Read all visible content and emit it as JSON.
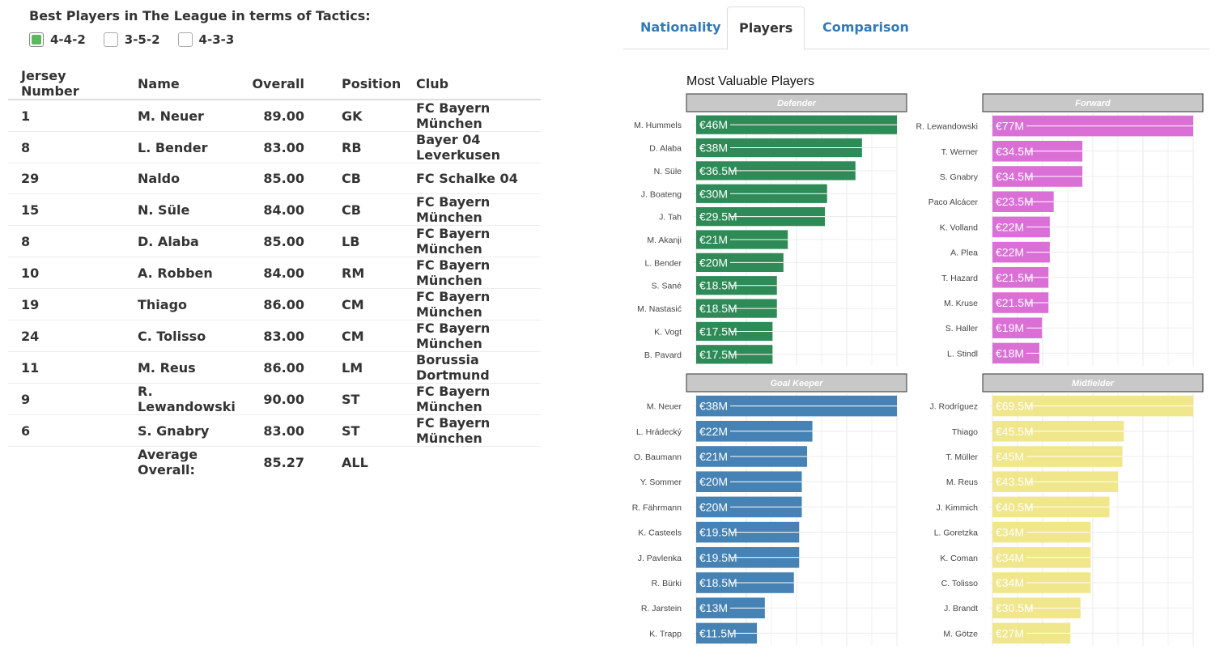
{
  "tactics": {
    "title": "Best Players in The League in terms of Tactics:",
    "options": [
      {
        "label": "4-4-2",
        "checked": true
      },
      {
        "label": "3-5-2",
        "checked": false
      },
      {
        "label": "4-3-3",
        "checked": false
      }
    ]
  },
  "table": {
    "headers": [
      "Jersey Number",
      "Name",
      "Overall",
      "Position",
      "Club"
    ],
    "rows": [
      [
        "1",
        "M. Neuer",
        "89.00",
        "GK",
        "FC Bayern München"
      ],
      [
        "8",
        "L. Bender",
        "83.00",
        "RB",
        "Bayer 04 Leverkusen"
      ],
      [
        "29",
        "Naldo",
        "85.00",
        "CB",
        "FC Schalke 04"
      ],
      [
        "15",
        "N. Süle",
        "84.00",
        "CB",
        "FC Bayern München"
      ],
      [
        "8",
        "D. Alaba",
        "85.00",
        "LB",
        "FC Bayern München"
      ],
      [
        "10",
        "A. Robben",
        "84.00",
        "RM",
        "FC Bayern München"
      ],
      [
        "19",
        "Thiago",
        "86.00",
        "CM",
        "FC Bayern München"
      ],
      [
        "24",
        "C. Tolisso",
        "83.00",
        "CM",
        "FC Bayern München"
      ],
      [
        "11",
        "M. Reus",
        "86.00",
        "LM",
        "Borussia Dortmund"
      ],
      [
        "9",
        "R. Lewandowski",
        "90.00",
        "ST",
        "FC Bayern München"
      ],
      [
        "6",
        "S. Gnabry",
        "83.00",
        "ST",
        "FC Bayern München"
      ]
    ],
    "average": {
      "label": "Average Overall:",
      "value": "85.27",
      "position": "ALL"
    }
  },
  "tabs": [
    {
      "label": "Nationality",
      "active": false
    },
    {
      "label": "Players",
      "active": true
    },
    {
      "label": "Comparison",
      "active": false
    }
  ],
  "chart_data": {
    "type": "bar",
    "title": "Most Valuable Players",
    "facets": [
      {
        "name": "Defender",
        "color": "#2e8b57",
        "max": 46,
        "categories": [
          "M. Hummels",
          "D. Alaba",
          "N. Süle",
          "J. Boateng",
          "J. Tah",
          "M. Akanji",
          "L. Bender",
          "S. Sané",
          "M. Nastasić",
          "K. Vogt",
          "B. Pavard"
        ],
        "values": [
          46,
          38,
          36.5,
          30,
          29.5,
          21,
          20,
          18.5,
          18.5,
          17.5,
          17.5
        ],
        "labels": [
          "€46M",
          "€38M",
          "€36.5M",
          "€30M",
          "€29.5M",
          "€21M",
          "€20M",
          "€18.5M",
          "€18.5M",
          "€17.5M",
          "€17.5M"
        ]
      },
      {
        "name": "Forward",
        "color": "#da70d6",
        "max": 77,
        "categories": [
          "R. Lewandowski",
          "T. Werner",
          "S. Gnabry",
          "Paco Alcácer",
          "K. Volland",
          "A. Plea",
          "T. Hazard",
          "M. Kruse",
          "S. Haller",
          "L. Stindl"
        ],
        "values": [
          77,
          34.5,
          34.5,
          23.5,
          22,
          22,
          21.5,
          21.5,
          19,
          18
        ],
        "labels": [
          "€77M",
          "€34.5M",
          "€34.5M",
          "€23.5M",
          "€22M",
          "€22M",
          "€21.5M",
          "€21.5M",
          "€19M",
          "€18M"
        ]
      },
      {
        "name": "Goal Keeper",
        "color": "#4682b4",
        "max": 38,
        "categories": [
          "M. Neuer",
          "L. Hrádecký",
          "O. Baumann",
          "Y. Sommer",
          "R. Fährmann",
          "K. Casteels",
          "J. Pavlenka",
          "R. Bürki",
          "R. Jarstein",
          "K. Trapp"
        ],
        "values": [
          38,
          22,
          21,
          20,
          20,
          19.5,
          19.5,
          18.5,
          13,
          11.5
        ],
        "labels": [
          "€38M",
          "€22M",
          "€21M",
          "€20M",
          "€20M",
          "€19.5M",
          "€19.5M",
          "€18.5M",
          "€13M",
          "€11.5M"
        ]
      },
      {
        "name": "Midfielder",
        "color": "#f0e68c",
        "max": 69.5,
        "categories": [
          "J. Rodríguez",
          "Thiago",
          "T. Müller",
          "M. Reus",
          "J. Kimmich",
          "L. Goretzka",
          "K. Coman",
          "C. Tolisso",
          "J. Brandt",
          "M. Götze"
        ],
        "values": [
          69.5,
          45.5,
          45,
          43.5,
          40.5,
          34,
          34,
          34,
          30.5,
          27
        ],
        "labels": [
          "€69.5M",
          "€45.5M",
          "€45M",
          "€43.5M",
          "€40.5M",
          "€34M",
          "€34M",
          "€34M",
          "€30.5M",
          "€27M"
        ]
      }
    ]
  }
}
